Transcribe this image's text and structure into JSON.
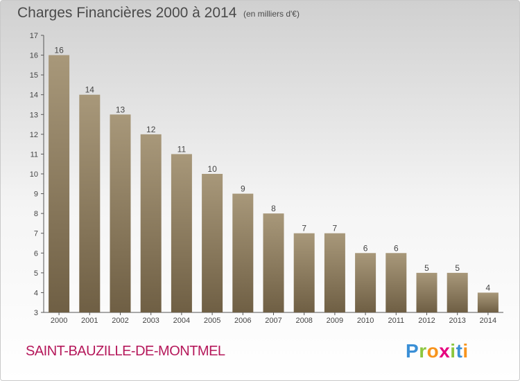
{
  "header": {
    "title": "Charges Financières 2000 à 2014",
    "unit_note": "(en milliers d'€)"
  },
  "footer": {
    "commune": "SAINT-BAUZILLE-DE-MONTMEL",
    "logo_letters": [
      "P",
      "r",
      "o",
      "x",
      "i",
      "t",
      "i"
    ],
    "logo_colors": [
      "#3a8fd6",
      "#8cc63f",
      "#f7941d",
      "#e6007e",
      "#8cc63f",
      "#3a8fd6",
      "#f7941d"
    ]
  },
  "colors": {
    "bar_light": "#a8987a",
    "bar_dark": "#6f5f44",
    "axis": "#555555",
    "text": "#4a4a4a",
    "commune": "#b5175a"
  },
  "chart_data": {
    "type": "bar",
    "title": "Charges Financières 2000 à 2014",
    "subtitle": "(en milliers d'€)",
    "categories": [
      "2000",
      "2001",
      "2002",
      "2003",
      "2004",
      "2005",
      "2006",
      "2007",
      "2008",
      "2009",
      "2010",
      "2011",
      "2012",
      "2013",
      "2014"
    ],
    "values": [
      16,
      14,
      13,
      12,
      11,
      10,
      9,
      8,
      7,
      7,
      6,
      6,
      5,
      5,
      4
    ],
    "xlabel": "",
    "ylabel": "",
    "ylim": [
      3,
      17
    ],
    "yticks": [
      3,
      4,
      5,
      6,
      7,
      8,
      9,
      10,
      11,
      12,
      13,
      14,
      15,
      16,
      17
    ],
    "grid": false,
    "legend": "none"
  }
}
